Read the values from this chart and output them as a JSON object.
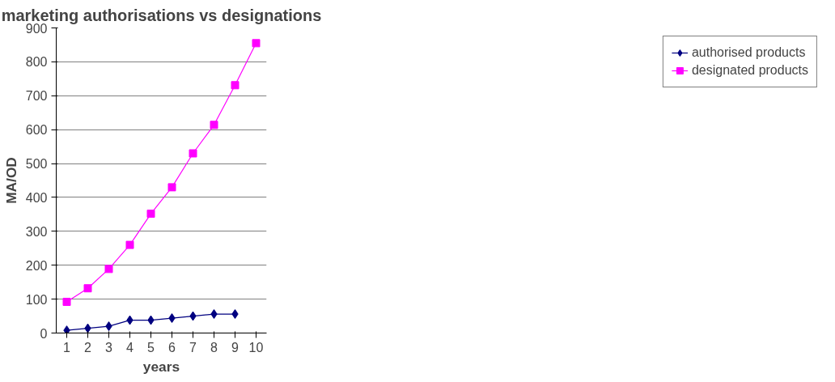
{
  "chart_data": {
    "type": "line",
    "title": "marketing authorisations vs designations",
    "xlabel": "years",
    "ylabel": "MA/OD",
    "categories": [
      "1",
      "2",
      "3",
      "4",
      "5",
      "6",
      "7",
      "8",
      "9",
      "10"
    ],
    "series": [
      {
        "name": "authorised products",
        "color": "#000080",
        "marker": "diamond",
        "values": [
          8,
          14,
          20,
          38,
          38,
          44,
          50,
          56,
          56,
          null
        ]
      },
      {
        "name": "designated products",
        "color": "#ff00ff",
        "marker": "square",
        "values": [
          92,
          132,
          189,
          260,
          352,
          430,
          530,
          614,
          731,
          855
        ]
      }
    ],
    "ylim": [
      0,
      900
    ],
    "yticks": [
      0,
      100,
      200,
      300,
      400,
      500,
      600,
      700,
      800,
      900
    ],
    "grid": "y",
    "legend": "right"
  }
}
